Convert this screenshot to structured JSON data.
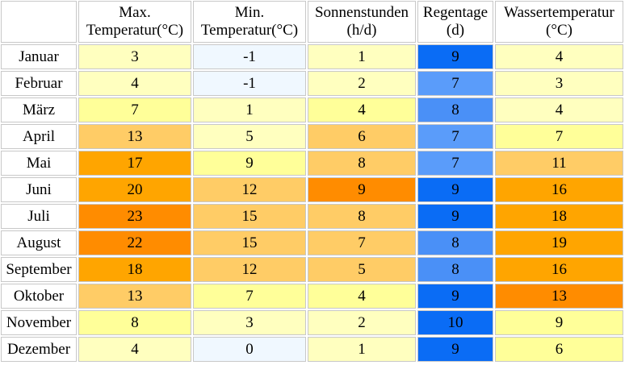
{
  "headers": [
    "",
    "Max.\nTemperatur(°C)",
    "Min.\nTemperatur(°C)",
    "Sonnenstunden\n(h/d)",
    "Regentage\n(d)",
    "Wassertemperatur\n(°C)"
  ],
  "header_lines": [
    [
      "",
      ""
    ],
    [
      "Max.",
      "Temperatur(°C)"
    ],
    [
      "Min.",
      "Temperatur(°C)"
    ],
    [
      "Sonnenstunden",
      "(h/d)"
    ],
    [
      "Regentage",
      "(d)"
    ],
    [
      "Wassertemperatur",
      "(°C)"
    ]
  ],
  "rows": [
    {
      "month": "Januar",
      "max": "3",
      "min": "-1",
      "sun": "1",
      "rain": "9",
      "water": "4"
    },
    {
      "month": "Februar",
      "max": "4",
      "min": "-1",
      "sun": "2",
      "rain": "7",
      "water": "3"
    },
    {
      "month": "März",
      "max": "7",
      "min": "1",
      "sun": "4",
      "rain": "8",
      "water": "4"
    },
    {
      "month": "April",
      "max": "13",
      "min": "5",
      "sun": "6",
      "rain": "7",
      "water": "7"
    },
    {
      "month": "Mai",
      "max": "17",
      "min": "9",
      "sun": "8",
      "rain": "7",
      "water": "11"
    },
    {
      "month": "Juni",
      "max": "20",
      "min": "12",
      "sun": "9",
      "rain": "9",
      "water": "16"
    },
    {
      "month": "Juli",
      "max": "23",
      "min": "15",
      "sun": "8",
      "rain": "9",
      "water": "18"
    },
    {
      "month": "August",
      "max": "22",
      "min": "15",
      "sun": "7",
      "rain": "8",
      "water": "19"
    },
    {
      "month": "September",
      "max": "18",
      "min": "12",
      "sun": "5",
      "rain": "8",
      "water": "16"
    },
    {
      "month": "Oktober",
      "max": "13",
      "min": "7",
      "sun": "4",
      "rain": "9",
      "water": "13"
    },
    {
      "month": "November",
      "max": "8",
      "min": "3",
      "sun": "2",
      "rain": "10",
      "water": "9"
    },
    {
      "month": "Dezember",
      "max": "4",
      "min": "0",
      "sun": "1",
      "rain": "9",
      "water": "6"
    }
  ],
  "cell_colors": {
    "max": [
      "#ffffbf",
      "#ffffbf",
      "#ffff99",
      "#ffcc66",
      "#ffa500",
      "#ffa500",
      "#ff8c00",
      "#ff8c00",
      "#ffa500",
      "#ffcc66",
      "#ffff99",
      "#ffffbf"
    ],
    "min": [
      "#f0f8ff",
      "#f0f8ff",
      "#ffffbf",
      "#ffffbf",
      "#ffff99",
      "#ffcc66",
      "#ffcc66",
      "#ffcc66",
      "#ffcc66",
      "#ffff99",
      "#ffffbf",
      "#f0f8ff"
    ],
    "sun": [
      "#ffffbf",
      "#ffffbf",
      "#ffff99",
      "#ffcc66",
      "#ffcc66",
      "#ff8c00",
      "#ffcc66",
      "#ffcc66",
      "#ffcc66",
      "#ffff99",
      "#ffffbf",
      "#ffffbf"
    ],
    "rain": [
      "#0a6cf5",
      "#5a9cfa",
      "#4a90f7",
      "#5a9cfa",
      "#5a9cfa",
      "#0a6cf5",
      "#0a6cf5",
      "#4a90f7",
      "#4a90f7",
      "#0a6cf5",
      "#0a6cf5",
      "#0a6cf5"
    ],
    "water": [
      "#ffffbf",
      "#ffffbf",
      "#ffffbf",
      "#ffff99",
      "#ffcc66",
      "#ffa500",
      "#ffa500",
      "#ffa500",
      "#ffa500",
      "#ff8c00",
      "#ffff99",
      "#ffff99"
    ]
  }
}
